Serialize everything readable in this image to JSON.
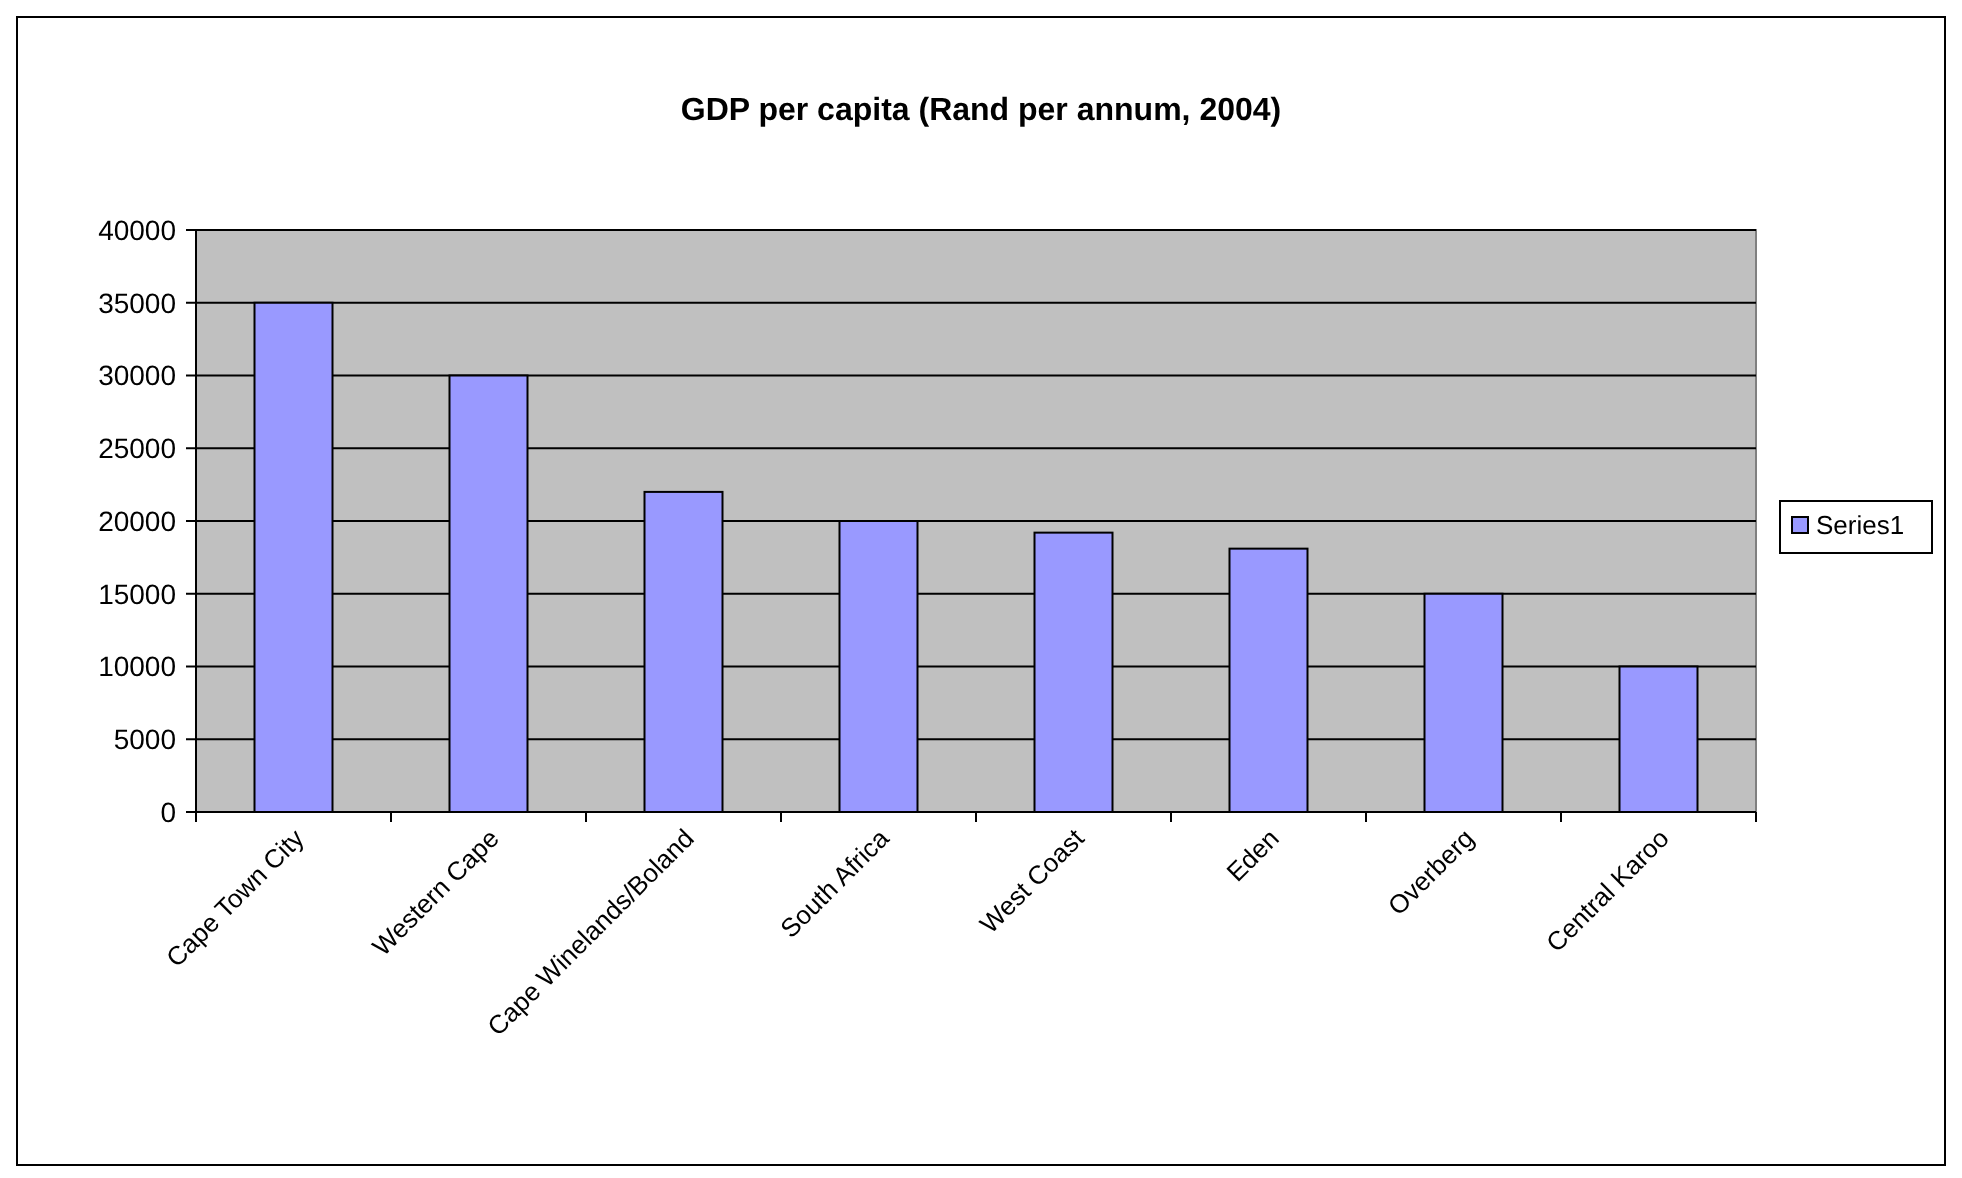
{
  "chart_data": {
    "type": "bar",
    "title": "GDP per capita (Rand per annum, 2004)",
    "categories": [
      "Cape Town City",
      "Western Cape",
      "Cape Winelands/Boland",
      "South Africa",
      "West Coast",
      "Eden",
      "Overberg",
      "Central Karoo"
    ],
    "series": [
      {
        "name": "Series1",
        "color": "#9999ff",
        "values": [
          35000,
          30000,
          22000,
          20000,
          19200,
          18100,
          15000,
          10000
        ]
      }
    ],
    "ylim": [
      0,
      40000
    ],
    "yticks": [
      0,
      5000,
      10000,
      15000,
      20000,
      25000,
      30000,
      35000,
      40000
    ],
    "grid": "y",
    "legend": "right"
  }
}
